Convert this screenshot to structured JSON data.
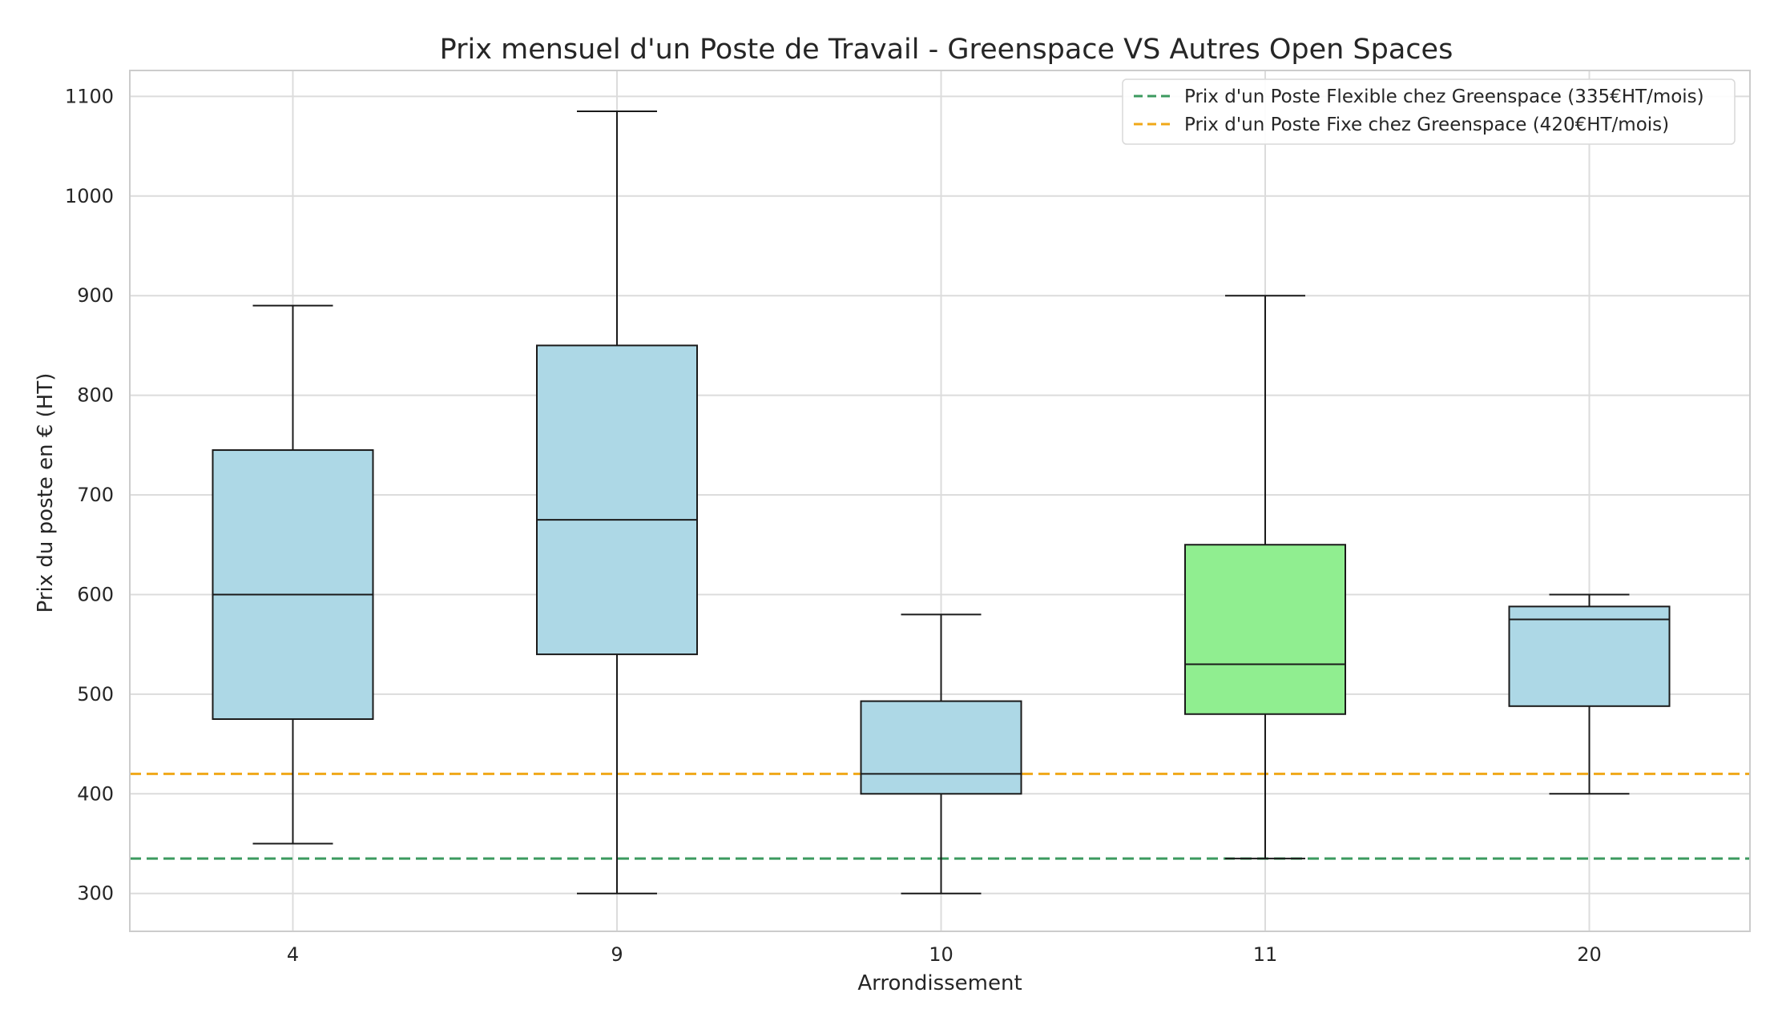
{
  "chart_data": {
    "type": "box",
    "title": "Prix mensuel d'un Poste de Travail - Greenspace VS Autres Open Spaces",
    "xlabel": "Arrondissement",
    "ylabel": "Prix du poste en € (HT)",
    "categories": [
      "4",
      "9",
      "10",
      "11",
      "20"
    ],
    "boxes": [
      {
        "category": "4",
        "whisker_low": 350,
        "q1": 475,
        "median": 600,
        "q3": 745,
        "whisker_high": 890,
        "color": "#add8e6"
      },
      {
        "category": "9",
        "whisker_low": 300,
        "q1": 540,
        "median": 675,
        "q3": 850,
        "whisker_high": 1085,
        "color": "#add8e6"
      },
      {
        "category": "10",
        "whisker_low": 300,
        "q1": 400,
        "median": 420,
        "q3": 493,
        "whisker_high": 580,
        "color": "#add8e6"
      },
      {
        "category": "11",
        "whisker_low": 335,
        "q1": 480,
        "median": 530,
        "q3": 650,
        "whisker_high": 900,
        "color": "#90ee90"
      },
      {
        "category": "20",
        "whisker_low": 400,
        "q1": 488,
        "median": 575,
        "q3": 588,
        "whisker_high": 600,
        "color": "#add8e6"
      }
    ],
    "reference_lines": [
      {
        "value": 335,
        "label": "Prix d'un Poste Flexible chez Greenspace (335€HT/mois)",
        "color": "#3c9a5f",
        "style": "dashed"
      },
      {
        "value": 420,
        "label": "Prix d'un Poste Fixe chez Greenspace (420€HT/mois)",
        "color": "#f0a818",
        "style": "dashed"
      }
    ],
    "yticks": [
      300,
      400,
      500,
      600,
      700,
      800,
      900,
      1000,
      1100
    ],
    "ylim": [
      262,
      1126
    ],
    "grid": true,
    "legend_position": "top-right"
  }
}
